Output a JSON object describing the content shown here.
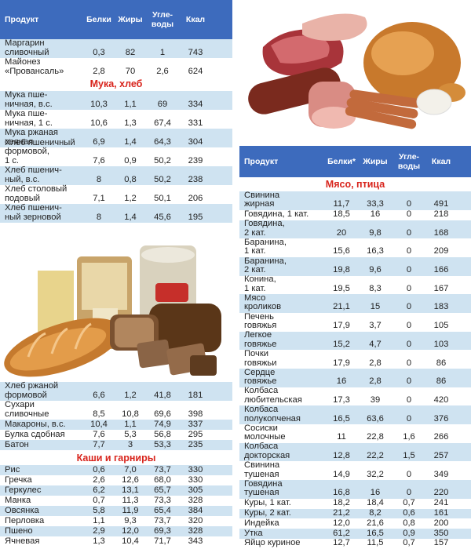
{
  "header_left": {
    "product": "Продукт",
    "protein": "Белки",
    "fat": "Жиры",
    "carbs": "Угле-\nводы",
    "kcal": "Ккал"
  },
  "header_right": {
    "product": "Продукт",
    "protein": "Белки*",
    "fat": "Жиры",
    "carbs": "Угле-\nводы",
    "kcal": "Ккал"
  },
  "top_rows": [
    {
      "name": "Маргарин\nсливочный",
      "p": "0,3",
      "f": "82",
      "c": "1",
      "k": "743"
    },
    {
      "name": "Майонез\n«Провансаль»",
      "p": "2,8",
      "f": "70",
      "c": "2,6",
      "k": "624"
    }
  ],
  "section_flour": "Мука, хлеб",
  "flour_rows": [
    {
      "name": "Мука пше-\nничная, в.с.",
      "p": "10,3",
      "f": "1,1",
      "c": "69",
      "k": "334"
    },
    {
      "name": "Мука пше-\nничная, 1 с.",
      "p": "10,6",
      "f": "1,3",
      "c": "67,4",
      "k": "331"
    },
    {
      "name": "Мука ржаная\nсеяная",
      "p": "6,9",
      "f": "1,4",
      "c": "64,3",
      "k": "304"
    },
    {
      "name": "Хлеб пшеничный формовой,\n1 с.",
      "p": "7,6",
      "f": "0,9",
      "c": "50,2",
      "k": "239"
    },
    {
      "name": "Хлеб пшенич-\nный, в.с.",
      "p": "8",
      "f": "0,8",
      "c": "50,2",
      "k": "238"
    },
    {
      "name": "Хлеб столовый\nподовый",
      "p": "7,1",
      "f": "1,2",
      "c": "50,1",
      "k": "206"
    },
    {
      "name": "Хлеб пшенич-\nный зерновой",
      "p": "8",
      "f": "1,4",
      "c": "45,6",
      "k": "195"
    }
  ],
  "bread_rows": [
    {
      "name": "Хлеб ржаной\nформовой",
      "p": "6,6",
      "f": "1,2",
      "c": "41,8",
      "k": "181"
    },
    {
      "name": "Сухари\nсливочные",
      "p": "8,5",
      "f": "10,8",
      "c": "69,6",
      "k": "398"
    },
    {
      "name": "Макароны, в.с.",
      "p": "10,4",
      "f": "1,1",
      "c": "74,9",
      "k": "337"
    },
    {
      "name": "Булка сдобная",
      "p": "7,6",
      "f": "5,3",
      "c": "56,8",
      "k": "295"
    },
    {
      "name": "Батон",
      "p": "7,7",
      "f": "3",
      "c": "53,3",
      "k": "235"
    }
  ],
  "section_porridge": "Каши и гарниры",
  "porridge_rows": [
    {
      "name": "Рис",
      "p": "0,6",
      "f": "7,0",
      "c": "73,7",
      "k": "330"
    },
    {
      "name": "Гречка",
      "p": "2,6",
      "f": "12,6",
      "c": "68,0",
      "k": "330"
    },
    {
      "name": "Геркулес",
      "p": "6,2",
      "f": "13,1",
      "c": "65,7",
      "k": "305"
    },
    {
      "name": "Манка",
      "p": "0,7",
      "f": "11,3",
      "c": "73,3",
      "k": "328"
    },
    {
      "name": "Овсянка",
      "p": "5,8",
      "f": "11,9",
      "c": "65,4",
      "k": "384"
    },
    {
      "name": "Перловка",
      "p": "1,1",
      "f": "9,3",
      "c": "73,7",
      "k": "320"
    },
    {
      "name": "Пшено",
      "p": "2,9",
      "f": "12,0",
      "c": "69,3",
      "k": "328"
    },
    {
      "name": "Ячневая",
      "p": "1,3",
      "f": "10,4",
      "c": "71,7",
      "k": "343"
    }
  ],
  "section_meat": "Мясо, птица",
  "meat_rows": [
    {
      "name": "Свинина\nжирная",
      "p": "11,7",
      "f": "33,3",
      "c": "0",
      "k": "491"
    },
    {
      "name": "Говядина, 1 кат.",
      "p": "18,5",
      "f": "16",
      "c": "0",
      "k": "218"
    },
    {
      "name": "Говядина,\n2 кат.",
      "p": "20",
      "f": "9,8",
      "c": "0",
      "k": "168"
    },
    {
      "name": "Баранина,\n1 кат.",
      "p": "15,6",
      "f": "16,3",
      "c": "0",
      "k": "209"
    },
    {
      "name": "Баранина,\n2 кат.",
      "p": "19,8",
      "f": "9,6",
      "c": "0",
      "k": "166"
    },
    {
      "name": "Конина,\n1 кат.",
      "p": "19,5",
      "f": "8,3",
      "c": "0",
      "k": "167"
    },
    {
      "name": "Мясо\nкроликов",
      "p": "21,1",
      "f": "15",
      "c": "0",
      "k": "183"
    },
    {
      "name": "Печень\nговяжья",
      "p": "17,9",
      "f": "3,7",
      "c": "0",
      "k": "105"
    },
    {
      "name": "Легкое\nговяжье",
      "p": "15,2",
      "f": "4,7",
      "c": "0",
      "k": "103"
    },
    {
      "name": "Почки\nговяжьи",
      "p": "17,9",
      "f": "2,8",
      "c": "0",
      "k": "86"
    },
    {
      "name": "Сердце\nговяжье",
      "p": "16",
      "f": "2,8",
      "c": "0",
      "k": "86"
    },
    {
      "name": "Колбаса\nлюбительская",
      "p": "17,3",
      "f": "39",
      "c": "0",
      "k": "420"
    },
    {
      "name": "Колбаса\nполукопченая",
      "p": "16,5",
      "f": "63,6",
      "c": "0",
      "k": "376"
    },
    {
      "name": "Сосиски\nмолочные",
      "p": "11",
      "f": "22,8",
      "c": "1,6",
      "k": "266"
    },
    {
      "name": "Колбаса\nдокторская",
      "p": "12,8",
      "f": "22,2",
      "c": "1,5",
      "k": "257"
    },
    {
      "name": "Свинина\nтушеная",
      "p": "14,9",
      "f": "32,2",
      "c": "0",
      "k": "349"
    },
    {
      "name": "Говядина\nтушеная",
      "p": "16,8",
      "f": "16",
      "c": "0",
      "k": "220"
    },
    {
      "name": "Куры, 1 кат.",
      "p": "18,2",
      "f": "18,4",
      "c": "0,7",
      "k": "241"
    },
    {
      "name": "Куры, 2 кат.",
      "p": "21,2",
      "f": "8,2",
      "c": "0,6",
      "k": "161"
    },
    {
      "name": "Индейка",
      "p": "12,0",
      "f": "21,6",
      "c": "0,8",
      "k": "200"
    },
    {
      "name": "Утка",
      "p": "61,2",
      "f": "16,5",
      "c": "0,9",
      "k": "350"
    },
    {
      "name": "Яйцо куриное",
      "p": "12,7",
      "f": "11,5",
      "c": "0,7",
      "k": "157"
    }
  ],
  "colors": {
    "header_bg": "#3d6bbd",
    "row_alt": "#cfe3f1",
    "section_red": "#d8241c"
  }
}
